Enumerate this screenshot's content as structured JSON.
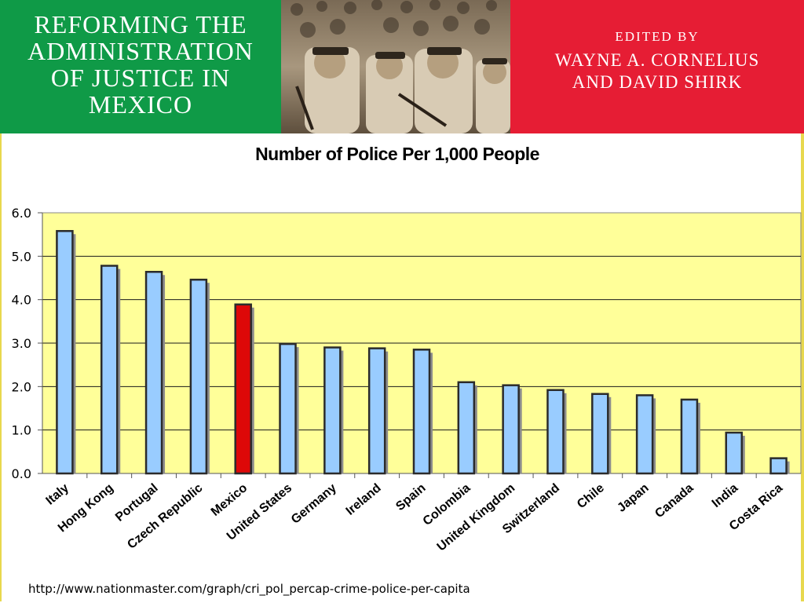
{
  "banner": {
    "title": "REFORMING THE\nADMINISTRATION\nOF JUSTICE IN\nMEXICO",
    "edited_by": "EDITED BY",
    "editors": "WAYNE A. CORNELIUS\nAND DAVID SHIRK",
    "left_color": "#0f9a47",
    "right_color": "#e61d34"
  },
  "chart_data": {
    "type": "bar",
    "title": "Number of Police Per 1,000 People",
    "xlabel": "",
    "ylabel": "",
    "ylim": [
      0,
      6
    ],
    "yticks": [
      "0.0",
      "1.0",
      "2.0",
      "3.0",
      "4.0",
      "5.0",
      "6.0"
    ],
    "grid": true,
    "legend": "none",
    "categories": [
      "Italy",
      "Hong Kong",
      "Portugal",
      "Czech Republic",
      "Mexico",
      "United States",
      "Germany",
      "Ireland",
      "Spain",
      "Colombia",
      "United Kingdom",
      "Switzerland",
      "Chile",
      "Japan",
      "Canada",
      "India",
      "Costa Rica"
    ],
    "values": [
      5.58,
      4.78,
      4.64,
      4.46,
      3.89,
      2.98,
      2.9,
      2.88,
      2.85,
      2.1,
      2.03,
      1.92,
      1.83,
      1.8,
      1.7,
      0.94,
      0.35
    ],
    "highlight": "Mexico",
    "colors": {
      "bar": "#99ccff",
      "highlight": "#dd0808",
      "plot_background": "#ffff99",
      "bar_outline": "#2b2b2b",
      "shadow": "#8c8c8c"
    }
  },
  "source": "http://www.nationmaster.com/graph/cri_pol_percap-crime-police-per-capita"
}
